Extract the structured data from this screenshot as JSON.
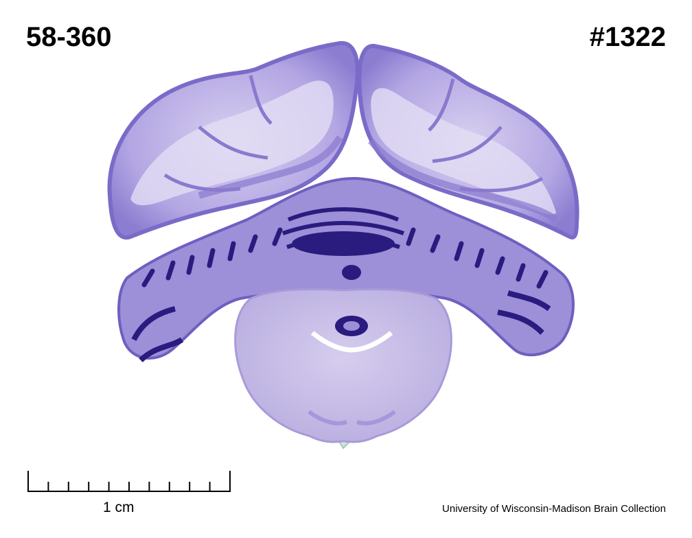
{
  "specimen_id": "58-360",
  "slide_number": "#1322",
  "scale_bar": {
    "label": "1 cm"
  },
  "credit": "University of Wisconsin-Madison Brain Collection",
  "image": {
    "subject": "Nissl-stained coronal brain section",
    "colors": {
      "tissue": "#9d8fd8",
      "dark_stain": "#2a1b7e",
      "pale_tissue": "#d7d0ee"
    }
  }
}
